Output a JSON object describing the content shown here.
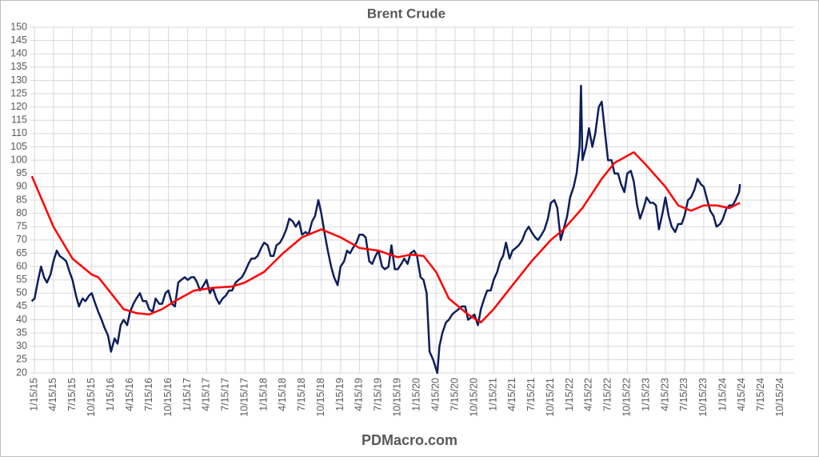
{
  "chart_data": {
    "type": "line",
    "title": "Brent Crude",
    "footer": "PDMacro.com",
    "grid": true,
    "xlim": [
      "2014-12-26",
      "2024-12-20"
    ],
    "ylim": [
      20,
      150
    ],
    "yticks": [
      20,
      25,
      30,
      35,
      40,
      45,
      50,
      55,
      60,
      65,
      70,
      75,
      80,
      85,
      90,
      95,
      100,
      105,
      110,
      115,
      120,
      125,
      130,
      135,
      140,
      145,
      150
    ],
    "xticks": [
      {
        "value": "2015-01-15",
        "label": "1/15/15"
      },
      {
        "value": "2015-04-15",
        "label": "4/15/15"
      },
      {
        "value": "2015-07-15",
        "label": "7/15/15"
      },
      {
        "value": "2015-10-15",
        "label": "10/15/15"
      },
      {
        "value": "2016-01-15",
        "label": "1/15/16"
      },
      {
        "value": "2016-04-15",
        "label": "4/15/16"
      },
      {
        "value": "2016-07-15",
        "label": "7/15/16"
      },
      {
        "value": "2016-10-15",
        "label": "10/15/16"
      },
      {
        "value": "2017-01-15",
        "label": "1/15/17"
      },
      {
        "value": "2017-04-15",
        "label": "4/15/17"
      },
      {
        "value": "2017-07-15",
        "label": "7/15/17"
      },
      {
        "value": "2017-10-15",
        "label": "10/15/17"
      },
      {
        "value": "2018-01-15",
        "label": "1/15/18"
      },
      {
        "value": "2018-04-15",
        "label": "4/15/18"
      },
      {
        "value": "2018-07-15",
        "label": "7/15/18"
      },
      {
        "value": "2018-10-15",
        "label": "10/15/18"
      },
      {
        "value": "2019-01-15",
        "label": "1/15/19"
      },
      {
        "value": "2019-04-15",
        "label": "4/15/19"
      },
      {
        "value": "2019-07-15",
        "label": "7/15/19"
      },
      {
        "value": "2019-10-15",
        "label": "10/15/19"
      },
      {
        "value": "2020-01-15",
        "label": "1/15/20"
      },
      {
        "value": "2020-04-15",
        "label": "4/15/20"
      },
      {
        "value": "2020-07-15",
        "label": "7/15/20"
      },
      {
        "value": "2020-10-15",
        "label": "10/15/20"
      },
      {
        "value": "2021-01-15",
        "label": "1/15/21"
      },
      {
        "value": "2021-04-15",
        "label": "4/15/21"
      },
      {
        "value": "2021-07-15",
        "label": "7/15/21"
      },
      {
        "value": "2021-10-15",
        "label": "10/15/21"
      },
      {
        "value": "2022-01-15",
        "label": "1/15/22"
      },
      {
        "value": "2022-04-15",
        "label": "4/15/22"
      },
      {
        "value": "2022-07-15",
        "label": "7/15/22"
      },
      {
        "value": "2022-10-15",
        "label": "10/15/22"
      },
      {
        "value": "2023-01-15",
        "label": "1/15/23"
      },
      {
        "value": "2023-04-15",
        "label": "4/15/23"
      },
      {
        "value": "2023-07-15",
        "label": "7/15/23"
      },
      {
        "value": "2023-10-15",
        "label": "10/15/23"
      },
      {
        "value": "2024-01-15",
        "label": "1/15/24"
      },
      {
        "value": "2024-04-15",
        "label": "4/15/24"
      },
      {
        "value": "2024-07-15",
        "label": "7/15/24"
      },
      {
        "value": "2024-10-15",
        "label": "10/15/24"
      }
    ],
    "series": [
      {
        "color": "#0d1f5c",
        "x": [
          "2015-01-01",
          "2015-01-15",
          "2015-02-01",
          "2015-02-15",
          "2015-03-01",
          "2015-03-15",
          "2015-04-01",
          "2015-04-15",
          "2015-05-01",
          "2015-05-15",
          "2015-06-01",
          "2015-06-15",
          "2015-07-01",
          "2015-07-15",
          "2015-08-01",
          "2015-08-15",
          "2015-09-01",
          "2015-09-15",
          "2015-10-01",
          "2015-10-15",
          "2015-11-01",
          "2015-11-15",
          "2015-12-01",
          "2015-12-15",
          "2016-01-01",
          "2016-01-15",
          "2016-02-01",
          "2016-02-15",
          "2016-03-01",
          "2016-03-15",
          "2016-04-01",
          "2016-04-15",
          "2016-05-01",
          "2016-05-15",
          "2016-06-01",
          "2016-06-15",
          "2016-07-01",
          "2016-07-15",
          "2016-08-01",
          "2016-08-15",
          "2016-09-01",
          "2016-09-15",
          "2016-10-01",
          "2016-10-15",
          "2016-11-01",
          "2016-11-15",
          "2016-12-01",
          "2016-12-15",
          "2017-01-01",
          "2017-01-15",
          "2017-02-01",
          "2017-02-15",
          "2017-03-01",
          "2017-03-15",
          "2017-04-01",
          "2017-04-15",
          "2017-05-01",
          "2017-05-15",
          "2017-06-01",
          "2017-06-15",
          "2017-07-01",
          "2017-07-15",
          "2017-08-01",
          "2017-08-15",
          "2017-09-01",
          "2017-09-15",
          "2017-10-01",
          "2017-10-15",
          "2017-11-01",
          "2017-11-15",
          "2017-12-01",
          "2017-12-15",
          "2018-01-01",
          "2018-01-15",
          "2018-02-01",
          "2018-02-15",
          "2018-03-01",
          "2018-03-15",
          "2018-04-01",
          "2018-04-15",
          "2018-05-01",
          "2018-05-15",
          "2018-06-01",
          "2018-06-15",
          "2018-07-01",
          "2018-07-15",
          "2018-08-01",
          "2018-08-15",
          "2018-09-01",
          "2018-09-15",
          "2018-10-01",
          "2018-10-15",
          "2018-11-01",
          "2018-11-15",
          "2018-12-01",
          "2018-12-15",
          "2019-01-01",
          "2019-01-15",
          "2019-02-01",
          "2019-02-15",
          "2019-03-01",
          "2019-03-15",
          "2019-04-01",
          "2019-04-15",
          "2019-05-01",
          "2019-05-15",
          "2019-06-01",
          "2019-06-15",
          "2019-07-01",
          "2019-07-15",
          "2019-08-01",
          "2019-08-15",
          "2019-09-01",
          "2019-09-15",
          "2019-10-01",
          "2019-10-15",
          "2019-11-01",
          "2019-11-15",
          "2019-12-01",
          "2019-12-15",
          "2020-01-01",
          "2020-01-15",
          "2020-02-01",
          "2020-02-15",
          "2020-03-01",
          "2020-03-15",
          "2020-04-01",
          "2020-04-21",
          "2020-05-01",
          "2020-05-15",
          "2020-06-01",
          "2020-06-15",
          "2020-07-01",
          "2020-07-15",
          "2020-08-01",
          "2020-08-15",
          "2020-09-01",
          "2020-09-15",
          "2020-10-01",
          "2020-10-15",
          "2020-11-01",
          "2020-11-15",
          "2020-12-01",
          "2020-12-15",
          "2021-01-01",
          "2021-01-15",
          "2021-02-01",
          "2021-02-15",
          "2021-03-01",
          "2021-03-15",
          "2021-04-01",
          "2021-04-15",
          "2021-05-01",
          "2021-05-15",
          "2021-06-01",
          "2021-06-15",
          "2021-07-01",
          "2021-07-15",
          "2021-08-01",
          "2021-08-15",
          "2021-09-01",
          "2021-09-15",
          "2021-10-01",
          "2021-10-15",
          "2021-11-01",
          "2021-11-15",
          "2021-12-01",
          "2021-12-15",
          "2022-01-01",
          "2022-01-15",
          "2022-02-01",
          "2022-02-15",
          "2022-03-01",
          "2022-03-08",
          "2022-03-15",
          "2022-04-01",
          "2022-04-15",
          "2022-05-01",
          "2022-05-15",
          "2022-06-01",
          "2022-06-15",
          "2022-07-01",
          "2022-07-15",
          "2022-08-01",
          "2022-08-15",
          "2022-09-01",
          "2022-09-15",
          "2022-10-01",
          "2022-10-15",
          "2022-11-01",
          "2022-11-15",
          "2022-12-01",
          "2022-12-15",
          "2023-01-01",
          "2023-01-15",
          "2023-02-01",
          "2023-02-15",
          "2023-03-01",
          "2023-03-15",
          "2023-04-01",
          "2023-04-15",
          "2023-05-01",
          "2023-05-15",
          "2023-06-01",
          "2023-06-15",
          "2023-07-01",
          "2023-07-15",
          "2023-08-01",
          "2023-08-15",
          "2023-09-01",
          "2023-09-15",
          "2023-10-01",
          "2023-10-15",
          "2023-11-01",
          "2023-11-15",
          "2023-12-01",
          "2023-12-15",
          "2024-01-01",
          "2024-01-15",
          "2024-02-01",
          "2024-02-15",
          "2024-03-01",
          "2024-03-15",
          "2024-04-01",
          "2024-04-05"
        ],
        "values": [
          47,
          48,
          55,
          60,
          56,
          54,
          57,
          62,
          66,
          64,
          63,
          62,
          58,
          55,
          49,
          45,
          48,
          47,
          49,
          50,
          46,
          43,
          40,
          37,
          34,
          28,
          33,
          31,
          38,
          40,
          38,
          43,
          46,
          48,
          50,
          47,
          47,
          44,
          43,
          48,
          46,
          46,
          50,
          51,
          46,
          45,
          54,
          55,
          56,
          55,
          56,
          56,
          54,
          51,
          53,
          55,
          50,
          52,
          48,
          46,
          48,
          49,
          51,
          51,
          54,
          55,
          56,
          58,
          61,
          63,
          63,
          64,
          67,
          69,
          68,
          64,
          64,
          68,
          69,
          71,
          74,
          78,
          77,
          75,
          77,
          72,
          73,
          72,
          77,
          79,
          85,
          80,
          72,
          66,
          60,
          56,
          53,
          60,
          62,
          66,
          65,
          67,
          69,
          72,
          72,
          71,
          62,
          61,
          64,
          66,
          60,
          59,
          60,
          68,
          59,
          59,
          61,
          63,
          61,
          65,
          66,
          64,
          56,
          55,
          50,
          28,
          25,
          20,
          30,
          35,
          39,
          40,
          42,
          43,
          44,
          45,
          45,
          40,
          41,
          42,
          38,
          44,
          48,
          51,
          51,
          55,
          58,
          62,
          64,
          69,
          63,
          66,
          67,
          68,
          70,
          73,
          75,
          73,
          71,
          70,
          72,
          74,
          78,
          84,
          85,
          82,
          70,
          74,
          79,
          86,
          90,
          95,
          105,
          128,
          100,
          105,
          112,
          105,
          110,
          120,
          122,
          110,
          100,
          100,
          95,
          95,
          91,
          88,
          95,
          96,
          92,
          83,
          78,
          82,
          86,
          84,
          84,
          83,
          74,
          80,
          86,
          79,
          75,
          73,
          76,
          76,
          79,
          85,
          86,
          89,
          93,
          91,
          90,
          85,
          81,
          79,
          75,
          76,
          78,
          82,
          83,
          83,
          85,
          88,
          91
        ]
      },
      {
        "color": "#ff0000",
        "x": [
          "2015-01-02",
          "2015-04-15",
          "2015-07-15",
          "2015-10-15",
          "2015-11-15",
          "2016-01-15",
          "2016-03-15",
          "2016-05-15",
          "2016-07-15",
          "2016-09-15",
          "2016-11-15",
          "2017-02-15",
          "2017-05-15",
          "2017-08-15",
          "2017-10-15",
          "2018-01-15",
          "2018-04-15",
          "2018-07-15",
          "2018-10-15",
          "2019-01-15",
          "2019-04-15",
          "2019-07-15",
          "2019-10-15",
          "2019-12-15",
          "2020-02-15",
          "2020-04-15",
          "2020-06-15",
          "2020-09-15",
          "2020-11-15",
          "2021-01-15",
          "2021-04-15",
          "2021-07-15",
          "2021-10-15",
          "2021-12-15",
          "2022-03-15",
          "2022-06-15",
          "2022-08-15",
          "2022-11-15",
          "2023-01-15",
          "2023-04-15",
          "2023-06-15",
          "2023-08-15",
          "2023-10-15",
          "2023-12-15",
          "2024-02-15",
          "2024-04-05"
        ],
        "values": [
          94,
          75,
          63,
          57,
          56,
          50,
          44,
          42.5,
          42,
          44,
          47,
          51,
          52,
          52.5,
          54,
          58,
          65,
          71,
          74,
          71,
          67,
          66,
          63.5,
          64.5,
          64,
          58,
          48,
          42,
          39,
          44,
          53,
          62,
          70,
          74,
          82,
          93,
          99,
          103,
          98,
          90,
          83,
          81,
          83,
          83,
          82,
          84
        ]
      }
    ]
  }
}
